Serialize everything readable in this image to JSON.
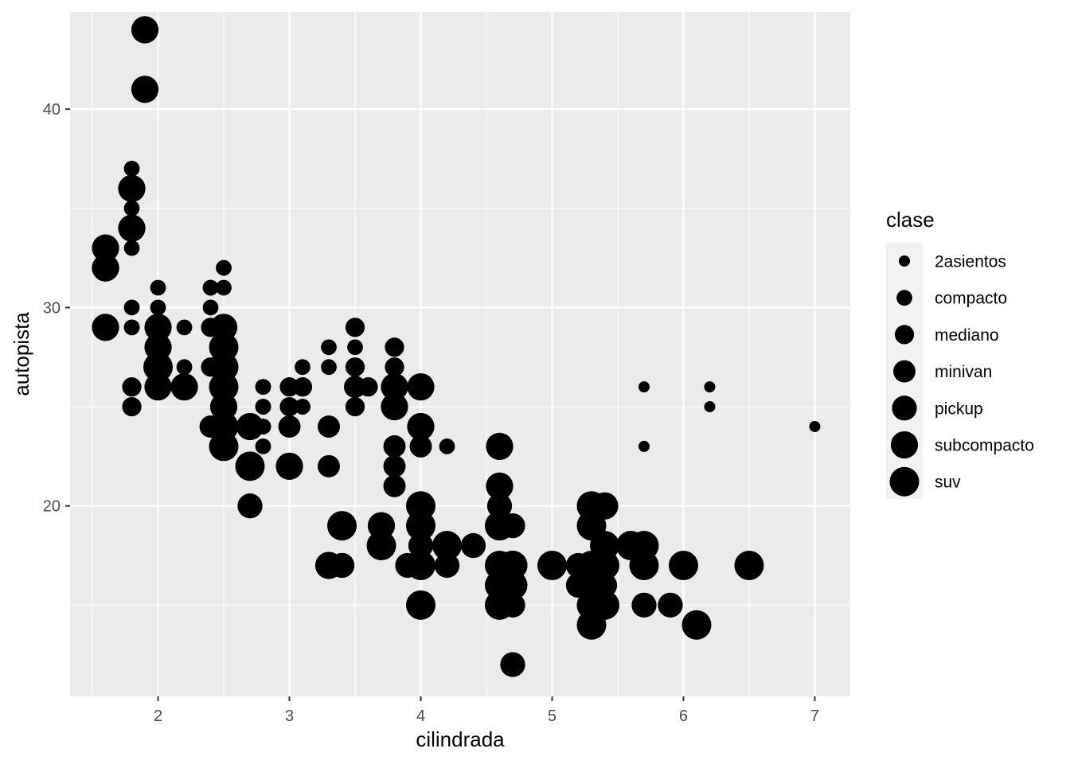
{
  "chart_data": {
    "type": "scatter",
    "xlabel": "cilindrada",
    "ylabel": "autopista",
    "xlim": [
      1.33,
      7.27
    ],
    "ylim": [
      10.4,
      44.9
    ],
    "x_ticks": [
      2,
      3,
      4,
      5,
      6,
      7
    ],
    "y_ticks": [
      20,
      30,
      40
    ],
    "grid": true,
    "legend": {
      "title": "clase",
      "placement": "right",
      "encoding": "size",
      "entries": [
        {
          "label": "2asientos",
          "size": 1
        },
        {
          "label": "compacto",
          "size": 2
        },
        {
          "label": "mediano",
          "size": 3
        },
        {
          "label": "minivan",
          "size": 4
        },
        {
          "label": "pickup",
          "size": 5
        },
        {
          "label": "subcompacto",
          "size": 6
        },
        {
          "label": "suv",
          "size": 7
        }
      ]
    },
    "colors": {
      "panel": "#ebebeb",
      "grid": "#ffffff",
      "point": "#000000"
    },
    "points": [
      {
        "x": 5.7,
        "y": 26,
        "class": "2asientos"
      },
      {
        "x": 5.7,
        "y": 23,
        "class": "2asientos"
      },
      {
        "x": 6.2,
        "y": 26,
        "class": "2asientos"
      },
      {
        "x": 6.2,
        "y": 25,
        "class": "2asientos"
      },
      {
        "x": 7.0,
        "y": 24,
        "class": "2asientos"
      },
      {
        "x": 1.8,
        "y": 29,
        "class": "compacto"
      },
      {
        "x": 1.8,
        "y": 29,
        "class": "compacto"
      },
      {
        "x": 2.0,
        "y": 31,
        "class": "compacto"
      },
      {
        "x": 2.0,
        "y": 30,
        "class": "compacto"
      },
      {
        "x": 2.8,
        "y": 26,
        "class": "compacto"
      },
      {
        "x": 2.8,
        "y": 26,
        "class": "compacto"
      },
      {
        "x": 3.1,
        "y": 27,
        "class": "compacto"
      },
      {
        "x": 1.8,
        "y": 26,
        "class": "compacto"
      },
      {
        "x": 1.8,
        "y": 25,
        "class": "compacto"
      },
      {
        "x": 2.0,
        "y": 28,
        "class": "compacto"
      },
      {
        "x": 2.0,
        "y": 27,
        "class": "compacto"
      },
      {
        "x": 2.8,
        "y": 25,
        "class": "compacto"
      },
      {
        "x": 2.8,
        "y": 25,
        "class": "compacto"
      },
      {
        "x": 3.1,
        "y": 25,
        "class": "compacto"
      },
      {
        "x": 3.1,
        "y": 25,
        "class": "compacto"
      },
      {
        "x": 2.2,
        "y": 29,
        "class": "compacto"
      },
      {
        "x": 2.2,
        "y": 27,
        "class": "compacto"
      },
      {
        "x": 2.4,
        "y": 31,
        "class": "compacto"
      },
      {
        "x": 2.4,
        "y": 31,
        "class": "compacto"
      },
      {
        "x": 3.0,
        "y": 26,
        "class": "compacto"
      },
      {
        "x": 3.0,
        "y": 26,
        "class": "compacto"
      },
      {
        "x": 3.3,
        "y": 28,
        "class": "compacto"
      },
      {
        "x": 1.8,
        "y": 37,
        "class": "compacto"
      },
      {
        "x": 1.8,
        "y": 35,
        "class": "compacto"
      },
      {
        "x": 2.4,
        "y": 30,
        "class": "compacto"
      },
      {
        "x": 2.5,
        "y": 32,
        "class": "compacto"
      },
      {
        "x": 2.5,
        "y": 31,
        "class": "compacto"
      },
      {
        "x": 2.8,
        "y": 24,
        "class": "compacto"
      },
      {
        "x": 2.8,
        "y": 23,
        "class": "compacto"
      },
      {
        "x": 1.8,
        "y": 33,
        "class": "compacto"
      },
      {
        "x": 2.0,
        "y": 29,
        "class": "compacto"
      },
      {
        "x": 2.8,
        "y": 24,
        "class": "compacto"
      },
      {
        "x": 2.0,
        "y": 26,
        "class": "compacto"
      },
      {
        "x": 3.3,
        "y": 27,
        "class": "compacto"
      },
      {
        "x": 1.8,
        "y": 30,
        "class": "compacto"
      },
      {
        "x": 3.5,
        "y": 28,
        "class": "compacto"
      },
      {
        "x": 4.2,
        "y": 23,
        "class": "compacto"
      },
      {
        "x": 1.8,
        "y": 26,
        "class": "mediano"
      },
      {
        "x": 1.8,
        "y": 25,
        "class": "mediano"
      },
      {
        "x": 2.0,
        "y": 28,
        "class": "mediano"
      },
      {
        "x": 3.1,
        "y": 26,
        "class": "mediano"
      },
      {
        "x": 3.5,
        "y": 29,
        "class": "mediano"
      },
      {
        "x": 3.6,
        "y": 26,
        "class": "mediano"
      },
      {
        "x": 3.5,
        "y": 27,
        "class": "mediano"
      },
      {
        "x": 3.8,
        "y": 26,
        "class": "mediano"
      },
      {
        "x": 3.8,
        "y": 28,
        "class": "mediano"
      },
      {
        "x": 3.0,
        "y": 25,
        "class": "mediano"
      },
      {
        "x": 3.0,
        "y": 24,
        "class": "mediano"
      },
      {
        "x": 3.3,
        "y": 24,
        "class": "mediano"
      },
      {
        "x": 3.3,
        "y": 22,
        "class": "mediano"
      },
      {
        "x": 2.4,
        "y": 27,
        "class": "mediano"
      },
      {
        "x": 2.4,
        "y": 29,
        "class": "mediano"
      },
      {
        "x": 2.5,
        "y": 26,
        "class": "mediano"
      },
      {
        "x": 3.5,
        "y": 26,
        "class": "mediano"
      },
      {
        "x": 2.5,
        "y": 25,
        "class": "mediano"
      },
      {
        "x": 3.8,
        "y": 27,
        "class": "mediano"
      },
      {
        "x": 3.5,
        "y": 25,
        "class": "mediano"
      },
      {
        "x": 3.0,
        "y": 26,
        "class": "mediano"
      },
      {
        "x": 4.0,
        "y": 23,
        "class": "mediano"
      },
      {
        "x": 2.4,
        "y": 24,
        "class": "minivan"
      },
      {
        "x": 3.0,
        "y": 24,
        "class": "minivan"
      },
      {
        "x": 3.3,
        "y": 22,
        "class": "minivan"
      },
      {
        "x": 3.8,
        "y": 22,
        "class": "minivan"
      },
      {
        "x": 3.8,
        "y": 21,
        "class": "minivan"
      },
      {
        "x": 4.0,
        "y": 23,
        "class": "minivan"
      },
      {
        "x": 3.3,
        "y": 24,
        "class": "minivan"
      },
      {
        "x": 3.8,
        "y": 23,
        "class": "minivan"
      },
      {
        "x": 3.5,
        "y": 26,
        "class": "minivan"
      },
      {
        "x": 4.7,
        "y": 12,
        "class": "pickup"
      },
      {
        "x": 4.7,
        "y": 15,
        "class": "pickup"
      },
      {
        "x": 5.2,
        "y": 16,
        "class": "pickup"
      },
      {
        "x": 5.7,
        "y": 15,
        "class": "pickup"
      },
      {
        "x": 5.9,
        "y": 15,
        "class": "pickup"
      },
      {
        "x": 4.7,
        "y": 17,
        "class": "pickup"
      },
      {
        "x": 5.2,
        "y": 17,
        "class": "pickup"
      },
      {
        "x": 3.9,
        "y": 17,
        "class": "pickup"
      },
      {
        "x": 4.6,
        "y": 17,
        "class": "pickup"
      },
      {
        "x": 5.4,
        "y": 17,
        "class": "pickup"
      },
      {
        "x": 5.3,
        "y": 16,
        "class": "pickup"
      },
      {
        "x": 4.2,
        "y": 17,
        "class": "pickup"
      },
      {
        "x": 4.7,
        "y": 19,
        "class": "pickup"
      },
      {
        "x": 2.7,
        "y": 20,
        "class": "pickup"
      },
      {
        "x": 3.4,
        "y": 17,
        "class": "pickup"
      },
      {
        "x": 4.0,
        "y": 20,
        "class": "pickup"
      },
      {
        "x": 4.0,
        "y": 19,
        "class": "pickup"
      },
      {
        "x": 3.4,
        "y": 17,
        "class": "pickup"
      },
      {
        "x": 5.4,
        "y": 16,
        "class": "pickup"
      },
      {
        "x": 5.4,
        "y": 20,
        "class": "pickup"
      },
      {
        "x": 4.0,
        "y": 18,
        "class": "pickup"
      },
      {
        "x": 4.6,
        "y": 20,
        "class": "pickup"
      },
      {
        "x": 4.4,
        "y": 18,
        "class": "pickup"
      },
      {
        "x": 1.6,
        "y": 33,
        "class": "subcompacto"
      },
      {
        "x": 1.6,
        "y": 32,
        "class": "subcompacto"
      },
      {
        "x": 1.6,
        "y": 32,
        "class": "subcompacto"
      },
      {
        "x": 1.6,
        "y": 29,
        "class": "subcompacto"
      },
      {
        "x": 1.8,
        "y": 34,
        "class": "subcompacto"
      },
      {
        "x": 1.8,
        "y": 36,
        "class": "subcompacto"
      },
      {
        "x": 1.9,
        "y": 44,
        "class": "subcompacto"
      },
      {
        "x": 1.9,
        "y": 41,
        "class": "subcompacto"
      },
      {
        "x": 2.0,
        "y": 29,
        "class": "subcompacto"
      },
      {
        "x": 2.0,
        "y": 26,
        "class": "subcompacto"
      },
      {
        "x": 2.0,
        "y": 28,
        "class": "subcompacto"
      },
      {
        "x": 2.0,
        "y": 27,
        "class": "subcompacto"
      },
      {
        "x": 2.2,
        "y": 26,
        "class": "subcompacto"
      },
      {
        "x": 2.5,
        "y": 28,
        "class": "subcompacto"
      },
      {
        "x": 2.5,
        "y": 26,
        "class": "subcompacto"
      },
      {
        "x": 2.5,
        "y": 27,
        "class": "subcompacto"
      },
      {
        "x": 2.5,
        "y": 29,
        "class": "subcompacto"
      },
      {
        "x": 2.7,
        "y": 24,
        "class": "subcompacto"
      },
      {
        "x": 3.0,
        "y": 22,
        "class": "subcompacto"
      },
      {
        "x": 3.8,
        "y": 26,
        "class": "subcompacto"
      },
      {
        "x": 3.8,
        "y": 25,
        "class": "subcompacto"
      },
      {
        "x": 4.0,
        "y": 26,
        "class": "subcompacto"
      },
      {
        "x": 4.0,
        "y": 24,
        "class": "subcompacto"
      },
      {
        "x": 4.6,
        "y": 23,
        "class": "subcompacto"
      },
      {
        "x": 4.6,
        "y": 21,
        "class": "subcompacto"
      },
      {
        "x": 5.4,
        "y": 20,
        "class": "subcompacto"
      },
      {
        "x": 3.7,
        "y": 19,
        "class": "subcompacto"
      },
      {
        "x": 3.3,
        "y": 17,
        "class": "subcompacto"
      },
      {
        "x": 2.5,
        "y": 25,
        "class": "subcompacto"
      },
      {
        "x": 2.5,
        "y": 23,
        "class": "subcompacto"
      },
      {
        "x": 5.3,
        "y": 20,
        "class": "suv"
      },
      {
        "x": 5.3,
        "y": 15,
        "class": "suv"
      },
      {
        "x": 5.3,
        "y": 14,
        "class": "suv"
      },
      {
        "x": 5.7,
        "y": 17,
        "class": "suv"
      },
      {
        "x": 6.0,
        "y": 17,
        "class": "suv"
      },
      {
        "x": 5.7,
        "y": 18,
        "class": "suv"
      },
      {
        "x": 6.5,
        "y": 17,
        "class": "suv"
      },
      {
        "x": 4.0,
        "y": 15,
        "class": "suv"
      },
      {
        "x": 4.7,
        "y": 16,
        "class": "suv"
      },
      {
        "x": 4.6,
        "y": 15,
        "class": "suv"
      },
      {
        "x": 5.4,
        "y": 18,
        "class": "suv"
      },
      {
        "x": 5.6,
        "y": 18,
        "class": "suv"
      },
      {
        "x": 6.1,
        "y": 14,
        "class": "suv"
      },
      {
        "x": 5.0,
        "y": 17,
        "class": "suv"
      },
      {
        "x": 4.6,
        "y": 19,
        "class": "suv"
      },
      {
        "x": 5.4,
        "y": 17,
        "class": "suv"
      },
      {
        "x": 5.3,
        "y": 19,
        "class": "suv"
      },
      {
        "x": 4.0,
        "y": 17,
        "class": "suv"
      },
      {
        "x": 4.2,
        "y": 18,
        "class": "suv"
      },
      {
        "x": 4.0,
        "y": 19,
        "class": "suv"
      },
      {
        "x": 3.7,
        "y": 18,
        "class": "suv"
      },
      {
        "x": 4.6,
        "y": 16,
        "class": "suv"
      },
      {
        "x": 4.7,
        "y": 17,
        "class": "suv"
      },
      {
        "x": 5.3,
        "y": 17,
        "class": "suv"
      },
      {
        "x": 2.5,
        "y": 24,
        "class": "suv"
      },
      {
        "x": 2.5,
        "y": 23,
        "class": "suv"
      },
      {
        "x": 2.7,
        "y": 22,
        "class": "suv"
      },
      {
        "x": 3.4,
        "y": 19,
        "class": "suv"
      },
      {
        "x": 4.0,
        "y": 20,
        "class": "suv"
      },
      {
        "x": 2.5,
        "y": 28,
        "class": "suv"
      },
      {
        "x": 4.7,
        "y": 17,
        "class": "suv"
      },
      {
        "x": 4.6,
        "y": 17,
        "class": "suv"
      },
      {
        "x": 5.4,
        "y": 15,
        "class": "suv"
      },
      {
        "x": 2.5,
        "y": 26,
        "class": "suv"
      },
      {
        "x": 2.5,
        "y": 27,
        "class": "suv"
      },
      {
        "x": 2.0,
        "y": 27,
        "class": "suv"
      }
    ]
  }
}
